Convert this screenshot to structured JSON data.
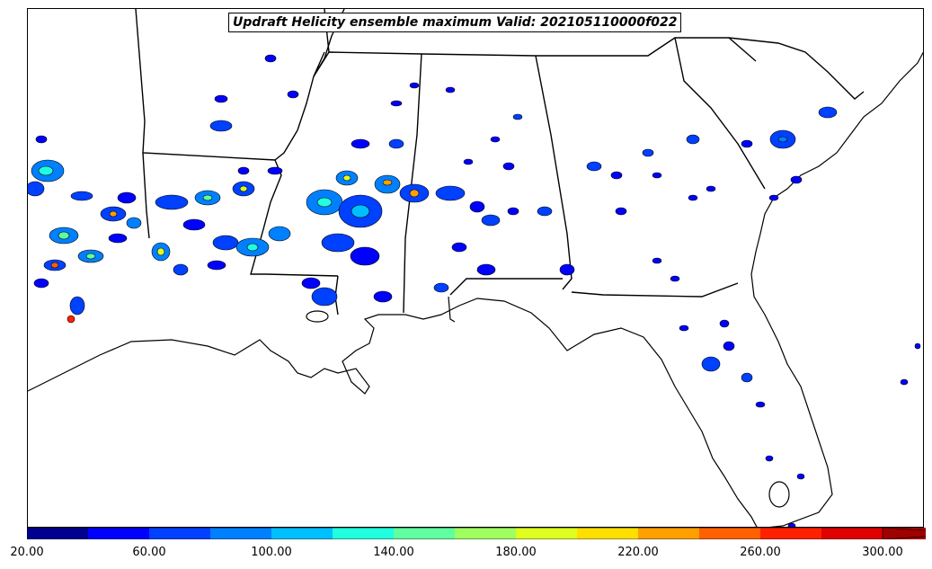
{
  "title": "Updraft Helicity ensemble maximum Valid: 202105110000f022",
  "colorbar": {
    "tick_labels": [
      "20.00",
      "60.00",
      "100.00",
      "140.00",
      "180.00",
      "220.00",
      "260.00",
      "300.00"
    ],
    "colors": [
      "#00008f",
      "#0000ff",
      "#0040ff",
      "#0080ff",
      "#00bfff",
      "#20ffdf",
      "#60ff9f",
      "#9fff60",
      "#dfff20",
      "#ffdf00",
      "#ff9f00",
      "#ff6000",
      "#ff2000",
      "#df0000",
      "#9f0000"
    ],
    "extend": "max"
  },
  "map": {
    "region": "Southeastern United States",
    "layers": [
      "coastlines",
      "state borders",
      "updraft helicity contours"
    ]
  }
}
